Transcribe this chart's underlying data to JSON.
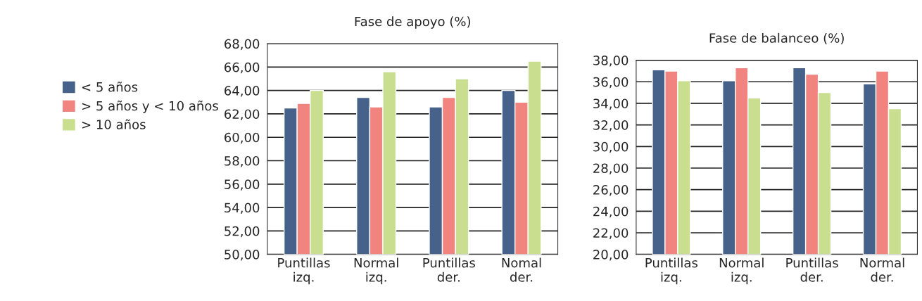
{
  "chart_data": [
    {
      "type": "bar",
      "title": "Fase de apoyo (%)",
      "categories": [
        "Puntillas izq.",
        "Normal izq.",
        "Puntillas der.",
        "Nomal der."
      ],
      "series": [
        {
          "name": "< 5 años",
          "color": "#46628a",
          "values": [
            62.5,
            63.4,
            62.6,
            64.0
          ]
        },
        {
          "name": "> 5 años y < 10 años",
          "color": "#f28480",
          "values": [
            62.9,
            62.6,
            63.4,
            63.0
          ]
        },
        {
          "name": "> 10 años",
          "color": "#c9df8f",
          "values": [
            64.0,
            65.6,
            65.0,
            66.5
          ]
        }
      ],
      "ylim": [
        50,
        68
      ],
      "yticks": [
        {
          "value": 50,
          "label": "50,00"
        },
        {
          "value": 52,
          "label": "52,00"
        },
        {
          "value": 54,
          "label": "54,00"
        },
        {
          "value": 56,
          "label": "56,00"
        },
        {
          "value": 58,
          "label": "58,00"
        },
        {
          "value": 60,
          "label": "60,00"
        },
        {
          "value": 62,
          "label": "62,00"
        },
        {
          "value": 64,
          "label": "64,00"
        },
        {
          "value": 66,
          "label": "66,00"
        },
        {
          "value": 68,
          "label": "68,00"
        }
      ],
      "grid": "y",
      "legend": "left"
    },
    {
      "type": "bar",
      "title": "Fase de balanceo (%)",
      "categories": [
        "Puntillas izq.",
        "Normal izq.",
        "Puntillas der.",
        "Normal der."
      ],
      "series": [
        {
          "color": "#46628a",
          "values": [
            37.1,
            36.1,
            37.3,
            35.8
          ]
        },
        {
          "color": "#f28480",
          "values": [
            37.0,
            37.3,
            36.7,
            37.0
          ]
        },
        {
          "color": "#c9df8f",
          "values": [
            36.1,
            34.5,
            35.0,
            33.5
          ]
        }
      ],
      "ylim": [
        20,
        38
      ],
      "yticks": [
        {
          "value": 20,
          "label": "20,00"
        },
        {
          "value": 22,
          "label": "22,00"
        },
        {
          "value": 24,
          "label": "24,00"
        },
        {
          "value": 26,
          "label": "26,00"
        },
        {
          "value": 28,
          "label": "28,00"
        },
        {
          "value": 30,
          "label": "30,00"
        },
        {
          "value": 32,
          "label": "32,00"
        },
        {
          "value": 34,
          "label": "34,00"
        },
        {
          "value": 36,
          "label": "36,00"
        },
        {
          "value": 38,
          "label": "38,00"
        }
      ],
      "grid": "y"
    }
  ]
}
